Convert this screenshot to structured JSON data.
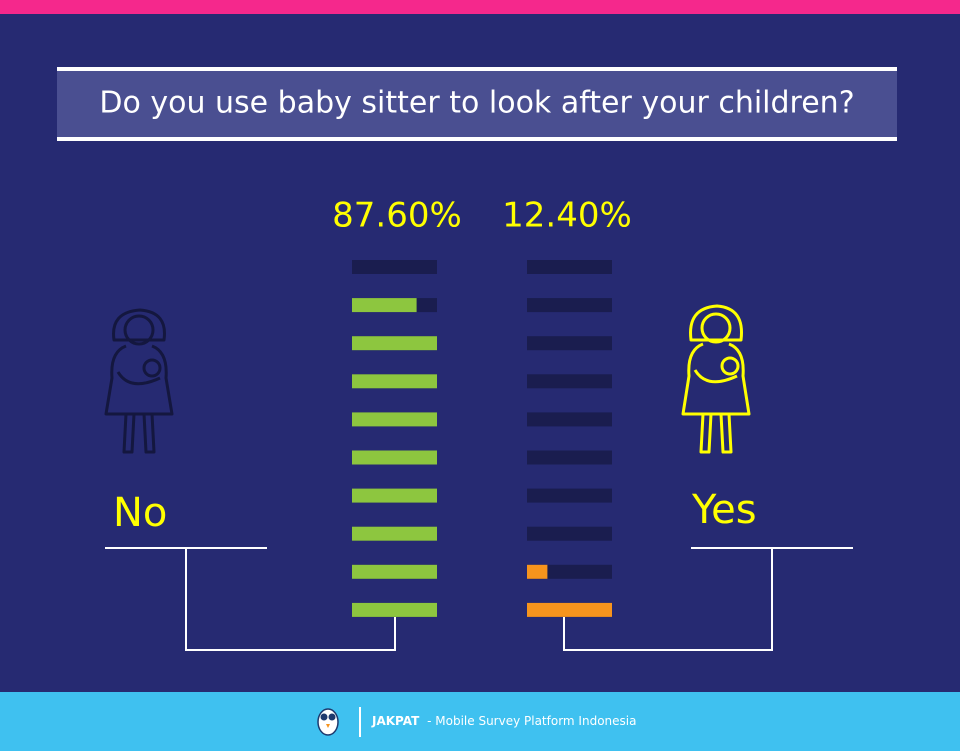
{
  "chart_data": {
    "type": "segmented-bar",
    "title": "Do you use baby sitter to look after your children?",
    "categories": [
      "No",
      "Yes"
    ],
    "values": [
      87.6,
      12.4
    ],
    "value_labels": [
      "87.60%",
      "12.40%"
    ],
    "colors": [
      "#8dc63f",
      "#f7941d"
    ],
    "ylim": [
      0,
      100
    ]
  },
  "footer": {
    "brand": "JAKPAT",
    "tagline": "- Mobile Survey Platform Indonesia"
  }
}
